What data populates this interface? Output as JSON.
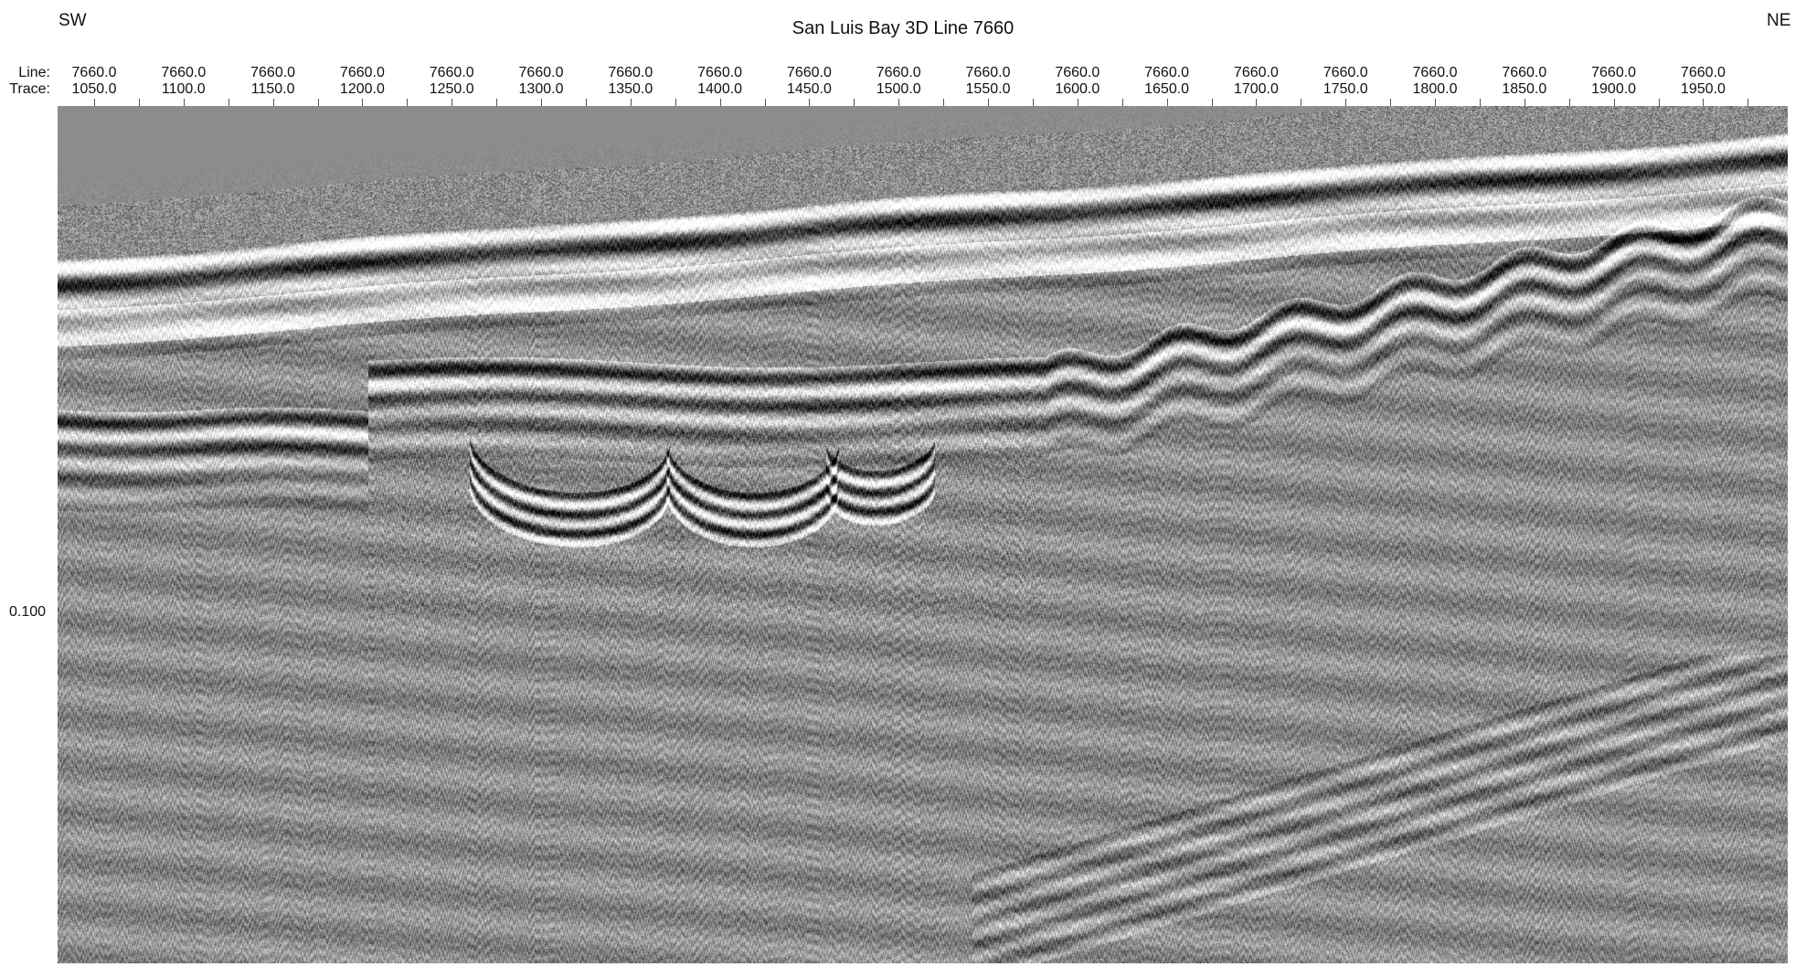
{
  "header": {
    "left_direction": "SW",
    "right_direction": "NE",
    "title": "San Luis Bay 3D Line 7660",
    "line_label": "Line:",
    "trace_label": "Trace:"
  },
  "axis": {
    "ticks": [
      {
        "line": "7660.0",
        "trace": "1050.0"
      },
      {
        "line": "7660.0",
        "trace": "1100.0"
      },
      {
        "line": "7660.0",
        "trace": "1150.0"
      },
      {
        "line": "7660.0",
        "trace": "1200.0"
      },
      {
        "line": "7660.0",
        "trace": "1250.0"
      },
      {
        "line": "7660.0",
        "trace": "1300.0"
      },
      {
        "line": "7660.0",
        "trace": "1350.0"
      },
      {
        "line": "7660.0",
        "trace": "1400.0"
      },
      {
        "line": "7660.0",
        "trace": "1450.0"
      },
      {
        "line": "7660.0",
        "trace": "1500.0"
      },
      {
        "line": "7660.0",
        "trace": "1550.0"
      },
      {
        "line": "7660.0",
        "trace": "1600.0"
      },
      {
        "line": "7660.0",
        "trace": "1650.0"
      },
      {
        "line": "7660.0",
        "trace": "1700.0"
      },
      {
        "line": "7660.0",
        "trace": "1750.0"
      },
      {
        "line": "7660.0",
        "trace": "1800.0"
      },
      {
        "line": "7660.0",
        "trace": "1850.0"
      },
      {
        "line": "7660.0",
        "trace": "1900.0"
      },
      {
        "line": "7660.0",
        "trace": "1950.0"
      }
    ],
    "time_label": "0.100"
  },
  "colors": {
    "background": "#ffffff",
    "text": "#111111",
    "water_column": "#8a8a8a",
    "noise_mid": "#8c8c8c",
    "reflector_dark": "#0a0a0a",
    "reflector_light": "#f5f5f5"
  }
}
